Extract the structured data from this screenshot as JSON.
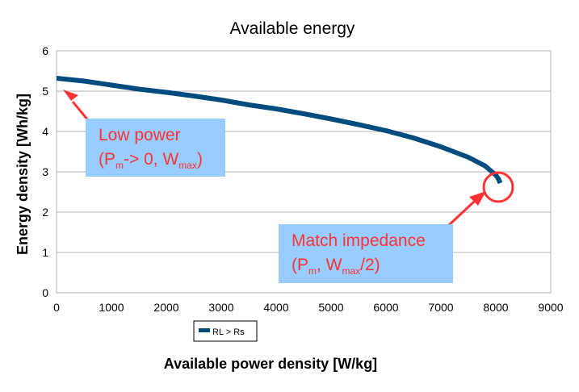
{
  "chart_data": {
    "type": "line",
    "title": "Available energy",
    "xlabel": "Available power density [W/kg]",
    "ylabel": "Energy density [Wh/kg]",
    "xlim": [
      0,
      9000
    ],
    "ylim": [
      0,
      6
    ],
    "x_ticks": [
      "0",
      "1000",
      "2000",
      "3000",
      "4000",
      "5000",
      "6000",
      "7000",
      "8000",
      "9000"
    ],
    "y_ticks": [
      "0",
      "1",
      "2",
      "3",
      "4",
      "5",
      "6"
    ],
    "grid": "horizontal",
    "legend": {
      "position": "bottom-left",
      "entries": [
        "RL > Rs"
      ]
    },
    "series": [
      {
        "name": "RL > Rs",
        "color": "#004c7f",
        "x": [
          0,
          500,
          1000,
          1500,
          2000,
          2500,
          3000,
          3500,
          4000,
          4500,
          5000,
          5500,
          6000,
          6500,
          7000,
          7500,
          7800,
          8000,
          8050,
          8080
        ],
        "y": [
          5.32,
          5.25,
          5.15,
          5.05,
          4.97,
          4.88,
          4.78,
          4.66,
          4.56,
          4.44,
          4.31,
          4.17,
          4.02,
          3.84,
          3.62,
          3.36,
          3.15,
          2.92,
          2.82,
          2.72
        ]
      }
    ],
    "annotations": [
      {
        "line1": "Low power",
        "line2_parts": [
          "(P",
          "m",
          "-> 0, W",
          "max",
          ")"
        ]
      },
      {
        "line1": "Match impedance",
        "line2_parts": [
          "(P",
          "m",
          ", W",
          "max",
          "/2)"
        ]
      }
    ],
    "annotation_color": "#ff3333",
    "callout_bg": "#99ccff"
  }
}
